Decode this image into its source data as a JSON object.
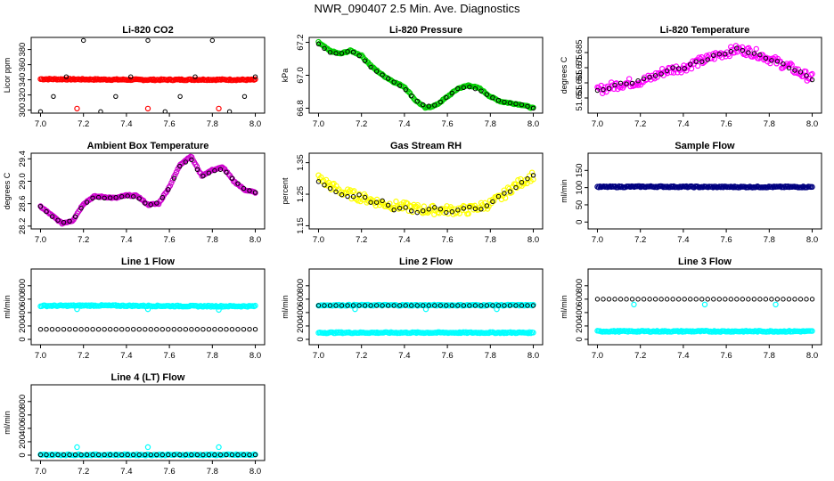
{
  "figure_title": "NWR_090407  2.5 Min. Ave. Diagnostics",
  "chart_data": [
    {
      "type": "scatter",
      "title": "Li-820 CO2",
      "ylabel": "Licor ppm",
      "xlim": [
        7.0,
        8.0
      ],
      "ylim": [
        296,
        396
      ],
      "xticks": [
        7.0,
        7.2,
        7.4,
        7.6,
        7.8,
        8.0
      ],
      "yticks": [
        300,
        320,
        340,
        360,
        380
      ],
      "x_tick_labels": [
        "7.0",
        "7.2",
        "7.4",
        "7.6",
        "7.8",
        "8.0"
      ],
      "y_tick_labels": [
        "300",
        "320",
        "340",
        "360",
        "380"
      ],
      "x": [
        7.0,
        7.25,
        7.5,
        7.75,
        8.0
      ],
      "series": [
        {
          "role": "dense",
          "color": "#ff0000",
          "values": [
            341,
            340.5,
            340,
            340.3,
            340
          ]
        },
        {
          "role": "outlier",
          "color": "#ff0000",
          "points": [
            [
              7.17,
              302
            ],
            [
              7.5,
              302
            ],
            [
              7.83,
              302
            ]
          ]
        },
        {
          "role": "markers",
          "color": "#000000",
          "points": [
            [
              7.0,
              298
            ],
            [
              7.06,
              318
            ],
            [
              7.12,
              344
            ],
            [
              7.2,
              392
            ],
            [
              7.28,
              298
            ],
            [
              7.35,
              318
            ],
            [
              7.42,
              344
            ],
            [
              7.5,
              392
            ],
            [
              7.58,
              298
            ],
            [
              7.65,
              318
            ],
            [
              7.72,
              344
            ],
            [
              7.8,
              392
            ],
            [
              7.88,
              298
            ],
            [
              7.95,
              318
            ],
            [
              8.0,
              344
            ]
          ]
        }
      ]
    },
    {
      "type": "scatter",
      "title": "Li-820 Pressure",
      "ylabel": "kPa",
      "xlim": [
        7.0,
        8.0
      ],
      "ylim": [
        66.77,
        67.23
      ],
      "xticks": [
        7.0,
        7.2,
        7.4,
        7.6,
        7.8,
        8.0
      ],
      "yticks": [
        66.8,
        67.0,
        67.2
      ],
      "x_tick_labels": [
        "7.0",
        "7.2",
        "7.4",
        "7.6",
        "7.8",
        "8.0"
      ],
      "y_tick_labels": [
        "66.8",
        "67.0",
        "67.2"
      ],
      "x": [
        7.0,
        7.05,
        7.1,
        7.15,
        7.2,
        7.25,
        7.3,
        7.35,
        7.4,
        7.45,
        7.5,
        7.55,
        7.6,
        7.65,
        7.7,
        7.75,
        7.8,
        7.85,
        7.9,
        7.95,
        8.0
      ],
      "series": [
        {
          "role": "dense",
          "color": "#00cd00",
          "values": [
            67.2,
            67.15,
            67.13,
            67.15,
            67.12,
            67.05,
            67.0,
            66.96,
            66.93,
            66.85,
            66.8,
            66.82,
            66.87,
            66.92,
            66.94,
            66.92,
            66.87,
            66.84,
            66.83,
            66.82,
            66.8
          ]
        },
        {
          "role": "markers",
          "color": "#000000",
          "values": [
            67.19,
            67.14,
            67.13,
            67.15,
            67.11,
            67.04,
            67.0,
            66.96,
            66.92,
            66.85,
            66.81,
            66.82,
            66.87,
            66.92,
            66.93,
            66.91,
            66.87,
            66.84,
            66.83,
            66.82,
            66.8
          ]
        }
      ]
    },
    {
      "type": "scatter",
      "title": "Li-820 Temperature",
      "ylabel": "degrees C",
      "xlim": [
        7.0,
        8.0
      ],
      "ylim": [
        51.645,
        51.695
      ],
      "xticks": [
        7.0,
        7.2,
        7.4,
        7.6,
        7.8,
        8.0
      ],
      "yticks": [
        51.655,
        51.665,
        51.675,
        51.685
      ],
      "x_tick_labels": [
        "7.0",
        "7.2",
        "7.4",
        "7.6",
        "7.8",
        "8.0"
      ],
      "y_tick_labels": [
        "51.655",
        "51.665",
        "51.675",
        "51.685"
      ],
      "x": [
        7.0,
        7.05,
        7.1,
        7.15,
        7.2,
        7.25,
        7.3,
        7.35,
        7.4,
        7.45,
        7.5,
        7.55,
        7.6,
        7.65,
        7.7,
        7.75,
        7.8,
        7.85,
        7.9,
        7.95,
        8.0
      ],
      "series": [
        {
          "role": "dense",
          "color": "#ff00ff",
          "values": [
            51.66,
            51.662,
            51.664,
            51.665,
            51.666,
            51.668,
            51.672,
            51.674,
            51.675,
            51.678,
            51.68,
            51.683,
            51.685,
            51.687,
            51.686,
            51.684,
            51.681,
            51.678,
            51.675,
            51.671,
            51.668
          ]
        },
        {
          "role": "markers",
          "color": "#000000",
          "values": [
            51.66,
            51.661,
            51.665,
            51.664,
            51.667,
            51.669,
            51.671,
            51.675,
            51.674,
            51.679,
            51.679,
            51.684,
            51.684,
            51.688,
            51.685,
            51.684,
            51.68,
            51.679,
            51.674,
            51.672,
            51.667
          ]
        }
      ]
    },
    {
      "type": "scatter",
      "title": "Ambient Box Temperature",
      "ylabel": "degrees C",
      "xlim": [
        7.0,
        8.0
      ],
      "ylim": [
        28.15,
        29.5
      ],
      "xticks": [
        7.0,
        7.2,
        7.4,
        7.6,
        7.8,
        8.0
      ],
      "yticks": [
        28.2,
        28.6,
        29.0,
        29.4
      ],
      "x_tick_labels": [
        "7.0",
        "7.2",
        "7.4",
        "7.6",
        "7.8",
        "8.0"
      ],
      "y_tick_labels": [
        "28.2",
        "28.6",
        "29.0",
        "29.4"
      ],
      "x": [
        7.0,
        7.05,
        7.1,
        7.15,
        7.2,
        7.25,
        7.3,
        7.35,
        7.4,
        7.45,
        7.5,
        7.55,
        7.6,
        7.65,
        7.7,
        7.75,
        7.8,
        7.85,
        7.9,
        7.95,
        8.0
      ],
      "series": [
        {
          "role": "dense",
          "color": "#cc00cc",
          "values": [
            28.55,
            28.4,
            28.25,
            28.3,
            28.6,
            28.73,
            28.72,
            28.7,
            28.75,
            28.74,
            28.58,
            28.6,
            28.9,
            29.3,
            29.45,
            29.1,
            29.2,
            29.25,
            29.0,
            28.85,
            28.8
          ]
        },
        {
          "role": "markers",
          "color": "#000000",
          "values": [
            28.55,
            28.38,
            28.26,
            28.3,
            28.58,
            28.72,
            28.7,
            28.71,
            28.74,
            28.72,
            28.57,
            28.62,
            28.88,
            29.28,
            29.4,
            29.08,
            29.18,
            29.22,
            29.02,
            28.86,
            28.8
          ]
        }
      ]
    },
    {
      "type": "scatter",
      "title": "Gas Stream RH",
      "ylabel": "percent",
      "xlim": [
        7.0,
        8.0
      ],
      "ylim": [
        1.14,
        1.38
      ],
      "xticks": [
        7.0,
        7.2,
        7.4,
        7.6,
        7.8,
        8.0
      ],
      "yticks": [
        1.15,
        1.25,
        1.35
      ],
      "x_tick_labels": [
        "7.0",
        "7.2",
        "7.4",
        "7.6",
        "7.8",
        "8.0"
      ],
      "y_tick_labels": [
        "1.15",
        "1.25",
        "1.35"
      ],
      "x": [
        7.0,
        7.05,
        7.1,
        7.15,
        7.2,
        7.25,
        7.3,
        7.35,
        7.4,
        7.45,
        7.5,
        7.55,
        7.6,
        7.65,
        7.7,
        7.75,
        7.8,
        7.85,
        7.9,
        7.95,
        8.0
      ],
      "series": [
        {
          "role": "dense",
          "color": "#ffff00",
          "values": [
            1.3,
            1.28,
            1.26,
            1.25,
            1.24,
            1.23,
            1.22,
            1.215,
            1.21,
            1.205,
            1.2,
            1.2,
            1.2,
            1.2,
            1.2,
            1.21,
            1.22,
            1.24,
            1.27,
            1.29,
            1.31
          ]
        },
        {
          "role": "markers",
          "color": "#000000",
          "values": [
            1.29,
            1.27,
            1.25,
            1.24,
            1.25,
            1.22,
            1.23,
            1.2,
            1.21,
            1.19,
            1.2,
            1.21,
            1.19,
            1.2,
            1.21,
            1.2,
            1.22,
            1.25,
            1.26,
            1.29,
            1.31
          ]
        }
      ]
    },
    {
      "type": "scatter",
      "title": "Sample Flow",
      "ylabel": "ml/min",
      "xlim": [
        7.0,
        8.0
      ],
      "ylim": [
        -20,
        200
      ],
      "xticks": [
        7.0,
        7.2,
        7.4,
        7.6,
        7.8,
        8.0
      ],
      "yticks": [
        0,
        50,
        100,
        150
      ],
      "x_tick_labels": [
        "7.0",
        "7.2",
        "7.4",
        "7.6",
        "7.8",
        "8.0"
      ],
      "y_tick_labels": [
        "0",
        "50",
        "100",
        "150"
      ],
      "x": [
        7.0,
        7.25,
        7.5,
        7.75,
        8.0
      ],
      "series": [
        {
          "role": "dense",
          "color": "#000080",
          "values": [
            102,
            103,
            102,
            102,
            102
          ]
        }
      ]
    },
    {
      "type": "scatter",
      "title": "Line 1 Flow",
      "ylabel": "ml/min",
      "xlim": [
        7.0,
        8.0
      ],
      "ylim": [
        -80,
        1050
      ],
      "xticks": [
        7.0,
        7.2,
        7.4,
        7.6,
        7.8,
        8.0
      ],
      "yticks": [
        0,
        200,
        400,
        600,
        800
      ],
      "x_tick_labels": [
        "7.0",
        "7.2",
        "7.4",
        "7.6",
        "7.8",
        "8.0"
      ],
      "y_tick_labels": [
        "0",
        "200",
        "400",
        "600",
        "800"
      ],
      "x": [
        7.0,
        7.25,
        7.5,
        7.75,
        8.0
      ],
      "series": [
        {
          "role": "dense",
          "color": "#00ffff",
          "values": [
            500,
            505,
            500,
            495,
            495
          ]
        },
        {
          "role": "outlier",
          "color": "#00ffff",
          "points": [
            [
              7.17,
              450
            ],
            [
              7.5,
              450
            ],
            [
              7.83,
              440
            ]
          ]
        },
        {
          "role": "markers",
          "color": "#000000",
          "values": [
            150,
            150,
            150,
            150,
            150
          ]
        }
      ]
    },
    {
      "type": "scatter",
      "title": "Line 2 Flow",
      "ylabel": "ml/min",
      "xlim": [
        7.0,
        8.0
      ],
      "ylim": [
        -80,
        1050
      ],
      "xticks": [
        7.0,
        7.2,
        7.4,
        7.6,
        7.8,
        8.0
      ],
      "yticks": [
        0,
        200,
        400,
        600,
        800
      ],
      "x_tick_labels": [
        "7.0",
        "7.2",
        "7.4",
        "7.6",
        "7.8",
        "8.0"
      ],
      "y_tick_labels": [
        "0",
        "200",
        "400",
        "600",
        "800"
      ],
      "x": [
        7.0,
        7.25,
        7.5,
        7.75,
        8.0
      ],
      "series": [
        {
          "role": "dense",
          "color": "#00ffff",
          "values": [
            100,
            100,
            100,
            100,
            100
          ]
        },
        {
          "role": "dense",
          "color": "#00ffff",
          "values": [
            510,
            510,
            510,
            510,
            510
          ]
        },
        {
          "role": "outlier",
          "color": "#00ffff",
          "points": [
            [
              7.17,
              450
            ],
            [
              7.5,
              450
            ],
            [
              7.83,
              450
            ]
          ]
        },
        {
          "role": "markers",
          "color": "#000000",
          "values": [
            505,
            505,
            505,
            505,
            505
          ]
        }
      ]
    },
    {
      "type": "scatter",
      "title": "Line 3 Flow",
      "ylabel": "ml/min",
      "xlim": [
        7.0,
        8.0
      ],
      "ylim": [
        -80,
        1050
      ],
      "xticks": [
        7.0,
        7.2,
        7.4,
        7.6,
        7.8,
        8.0
      ],
      "yticks": [
        0,
        200,
        400,
        600,
        800
      ],
      "x_tick_labels": [
        "7.0",
        "7.2",
        "7.4",
        "7.6",
        "7.8",
        "8.0"
      ],
      "y_tick_labels": [
        "0",
        "200",
        "400",
        "600",
        "800"
      ],
      "x": [
        7.0,
        7.25,
        7.5,
        7.75,
        8.0
      ],
      "series": [
        {
          "role": "dense",
          "color": "#00ffff",
          "values": [
            120,
            120,
            120,
            120,
            120
          ]
        },
        {
          "role": "outlier",
          "color": "#00ffff",
          "points": [
            [
              7.17,
              520
            ],
            [
              7.5,
              520
            ],
            [
              7.83,
              520
            ]
          ]
        },
        {
          "role": "markers",
          "color": "#000000",
          "values": [
            600,
            600,
            600,
            600,
            600
          ]
        }
      ]
    },
    {
      "type": "scatter",
      "title": "Line 4 (LT) Flow",
      "ylabel": "ml/min",
      "xlim": [
        7.0,
        8.0
      ],
      "ylim": [
        -80,
        1050
      ],
      "xticks": [
        7.0,
        7.2,
        7.4,
        7.6,
        7.8,
        8.0
      ],
      "yticks": [
        0,
        200,
        400,
        600,
        800
      ],
      "x_tick_labels": [
        "7.0",
        "7.2",
        "7.4",
        "7.6",
        "7.8",
        "8.0"
      ],
      "y_tick_labels": [
        "0",
        "200",
        "400",
        "600",
        "800"
      ],
      "x": [
        7.0,
        7.25,
        7.5,
        7.75,
        8.0
      ],
      "series": [
        {
          "role": "dense",
          "color": "#00ffff",
          "values": [
            5,
            5,
            5,
            5,
            5
          ]
        },
        {
          "role": "outlier",
          "color": "#00ffff",
          "points": [
            [
              7.17,
              120
            ],
            [
              7.5,
              120
            ],
            [
              7.83,
              120
            ]
          ]
        },
        {
          "role": "markers",
          "color": "#000000",
          "values": [
            5,
            5,
            5,
            5,
            5
          ]
        }
      ]
    }
  ]
}
